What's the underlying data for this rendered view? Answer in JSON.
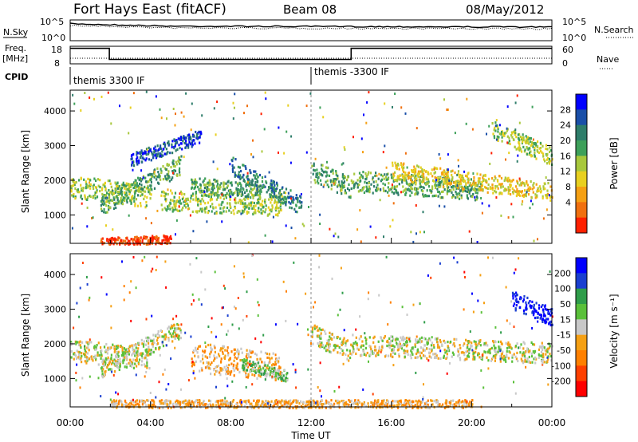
{
  "header": {
    "title": "Fort Hays East (fitACF)",
    "beam": "Beam 08",
    "date": "08/May/2012"
  },
  "param_panel": {
    "nsky_label": "N.Sky",
    "nsky_ticks": [
      "10^5",
      "10^0"
    ],
    "nsearch_label": "N.Search",
    "nsearch_ticks": [
      "10^5",
      "10^0"
    ],
    "freq_label": "Freq.",
    "freq_unit": "[MHz]",
    "freq_ticks": [
      "18",
      "8"
    ],
    "nave_label": "Nave",
    "nave_ticks": [
      "60",
      "0"
    ],
    "cpid_label": "CPID",
    "cpid_segments": [
      {
        "label": "themis 3300 IF",
        "start": "00:00",
        "end": "12:00"
      },
      {
        "label": "themis -3300 IF",
        "start": "12:00",
        "end": "24:00"
      }
    ],
    "freq_steps": [
      {
        "start": 0.0,
        "end": 1.95,
        "level": 0.88
      },
      {
        "start": 1.95,
        "end": 14.0,
        "level": 0.25
      },
      {
        "start": 14.0,
        "end": 24.0,
        "level": 0.88
      }
    ]
  },
  "chart_data": [
    {
      "type": "heatmap",
      "title": "",
      "xlabel": "Time UT",
      "ylabel": "Slant Range [km]",
      "x_ticks": [
        "00:00",
        "04:00",
        "08:00",
        "12:00",
        "16:00",
        "20:00",
        "00:00"
      ],
      "y_ticks": [
        "1000",
        "2000",
        "3000",
        "4000"
      ],
      "xlim": [
        0,
        24
      ],
      "ylim": [
        180,
        4600
      ],
      "colorbar": {
        "label": "Power [dB]",
        "ticks": [
          "4",
          "8",
          "12",
          "16",
          "20",
          "24",
          "28"
        ],
        "colors": [
          "#0000ff",
          "#1a4fa8",
          "#2e7d6a",
          "#3ea05a",
          "#a8c83c",
          "#e8d020",
          "#f5a014",
          "#f07010",
          "#ff2000"
        ]
      },
      "bands": [
        {
          "t0": 0.0,
          "t1": 4.0,
          "r0": 1850,
          "r1": 1550,
          "w": 320,
          "c": 4
        },
        {
          "t0": 1.5,
          "t1": 5.5,
          "r0": 1300,
          "r1": 2450,
          "w": 280,
          "c": 3
        },
        {
          "t0": 3.0,
          "t1": 6.5,
          "r0": 2600,
          "r1": 3300,
          "w": 200,
          "c": 1
        },
        {
          "t0": 4.5,
          "t1": 10.5,
          "r0": 1450,
          "r1": 1300,
          "w": 300,
          "c": 4
        },
        {
          "t0": 6.0,
          "t1": 9.5,
          "r0": 1900,
          "r1": 1700,
          "w": 220,
          "c": 3
        },
        {
          "t0": 8.0,
          "t1": 11.5,
          "r0": 2450,
          "r1": 1300,
          "w": 260,
          "c": 2
        },
        {
          "t0": 12.0,
          "t1": 14.0,
          "r0": 2300,
          "r1": 1800,
          "w": 300,
          "c": 3
        },
        {
          "t0": 14.0,
          "t1": 20.5,
          "r0": 2000,
          "r1": 1750,
          "w": 300,
          "c": 3
        },
        {
          "t0": 16.0,
          "t1": 24.0,
          "r0": 2300,
          "r1": 1700,
          "w": 260,
          "c": 5
        },
        {
          "t0": 21.0,
          "t1": 24.0,
          "r0": 3500,
          "r1": 2700,
          "w": 260,
          "c": 4
        },
        {
          "t0": 1.5,
          "t1": 5.0,
          "r0": 240,
          "r1": 330,
          "w": 120,
          "c": 8
        }
      ]
    },
    {
      "type": "heatmap",
      "title": "",
      "xlabel": "Time UT",
      "ylabel": "Slant Range [km]",
      "x_ticks": [
        "00:00",
        "04:00",
        "08:00",
        "12:00",
        "16:00",
        "20:00",
        "00:00"
      ],
      "y_ticks": [
        "1000",
        "2000",
        "3000",
        "4000"
      ],
      "xlim": [
        0,
        24
      ],
      "ylim": [
        180,
        4600
      ],
      "colorbar": {
        "label": "Velocity [m s⁻¹]",
        "ticks": [
          "200",
          "100",
          "50",
          "15",
          "-15",
          "-50",
          "-100",
          "-200"
        ],
        "colors": [
          "#0000ff",
          "#1a3fd0",
          "#2f9d4a",
          "#5ac03a",
          "#c8c8c8",
          "#f5a014",
          "#ff8000",
          "#ff4000",
          "#ff0000"
        ]
      },
      "bands": [
        {
          "t0": 0.0,
          "t1": 4.0,
          "r0": 1850,
          "r1": 1550,
          "w": 320,
          "c": 4
        },
        {
          "t0": 1.5,
          "t1": 5.5,
          "r0": 1300,
          "r1": 2450,
          "w": 280,
          "c": 4
        },
        {
          "t0": 6.0,
          "t1": 10.5,
          "r0": 1650,
          "r1": 1350,
          "w": 420,
          "c": 5
        },
        {
          "t0": 8.5,
          "t1": 10.8,
          "r0": 1450,
          "r1": 1100,
          "w": 160,
          "c": 3
        },
        {
          "t0": 12.0,
          "t1": 14.0,
          "r0": 2300,
          "r1": 1800,
          "w": 300,
          "c": 4
        },
        {
          "t0": 14.0,
          "t1": 24.0,
          "r0": 2000,
          "r1": 1750,
          "w": 300,
          "c": 4
        },
        {
          "t0": 22.0,
          "t1": 24.0,
          "r0": 3300,
          "r1": 2800,
          "w": 260,
          "c": 0
        },
        {
          "t0": 2.0,
          "t1": 20.0,
          "r0": 260,
          "r1": 260,
          "w": 150,
          "c": 5
        }
      ]
    }
  ]
}
